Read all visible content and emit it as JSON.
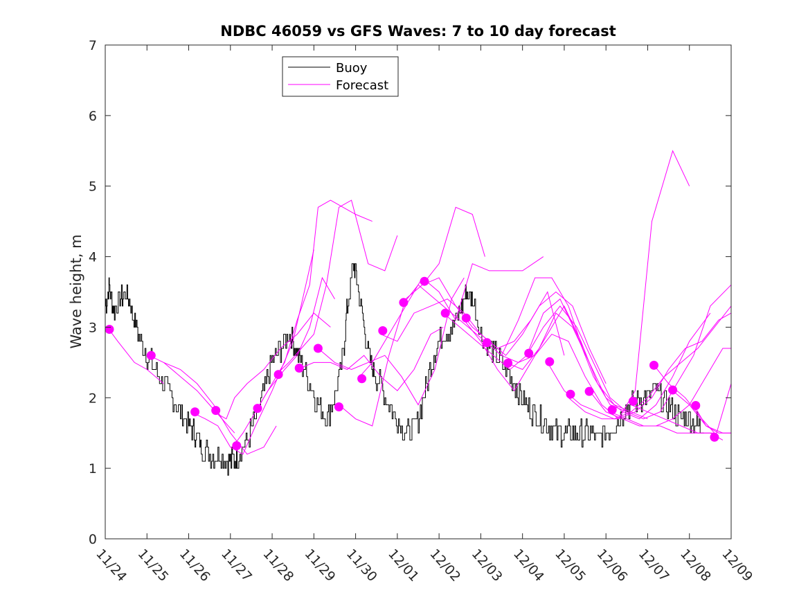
{
  "chart_data": {
    "type": "line",
    "title": "NDBC 46059 vs GFS Waves: 7 to 10 day forecast",
    "xlabel": "",
    "ylabel": "Wave height, m",
    "xlim": [
      0,
      15
    ],
    "ylim": [
      0,
      7
    ],
    "yticks": [
      0,
      1,
      2,
      3,
      4,
      5,
      6,
      7
    ],
    "xticks": [
      0,
      1,
      2,
      3,
      4,
      5,
      6,
      7,
      8,
      9,
      10,
      11,
      12,
      13,
      14,
      15
    ],
    "xtick_labels": [
      "11/24",
      "11/25",
      "11/26",
      "11/27",
      "11/28",
      "11/29",
      "11/30",
      "12/01",
      "12/02",
      "12/03",
      "12/04",
      "12/05",
      "12/06",
      "12/07",
      "12/08",
      "12/09"
    ],
    "legend": {
      "position": "top-left",
      "entries": [
        {
          "label": "Buoy",
          "color": "#000000"
        },
        {
          "label": "Forecast",
          "color": "#ff00ff"
        }
      ]
    },
    "colors": {
      "buoy": "#000000",
      "forecast": "#ff00ff",
      "marker": "#ff00ff"
    },
    "buoy": {
      "name": "Buoy",
      "x": [
        0,
        0.1,
        0.2,
        0.35,
        0.5,
        0.65,
        0.8,
        1.0,
        1.2,
        1.4,
        1.6,
        1.8,
        2.0,
        2.15,
        2.3,
        2.5,
        2.7,
        2.9,
        3.05,
        3.2,
        3.4,
        3.6,
        3.8,
        4.0,
        4.2,
        4.4,
        4.55,
        4.7,
        4.9,
        5.1,
        5.3,
        5.5,
        5.7,
        5.8,
        5.95,
        6.05,
        6.2,
        6.35,
        6.5,
        6.7,
        6.9,
        7.1,
        7.3,
        7.5,
        7.7,
        7.9,
        8.1,
        8.3,
        8.5,
        8.65,
        8.8,
        9.0,
        9.2,
        9.4,
        9.6,
        9.8,
        10.0,
        10.2,
        10.4,
        10.6,
        10.8,
        11.0,
        11.2,
        11.4,
        11.6,
        11.8,
        12.0,
        12.2,
        12.4,
        12.6,
        12.8,
        13.0,
        13.2,
        13.4,
        13.6,
        13.8,
        14.0,
        14.2,
        14.35
      ],
      "y": [
        3.3,
        3.6,
        3.2,
        3.4,
        3.5,
        3.2,
        2.9,
        2.6,
        2.4,
        2.2,
        2.0,
        1.8,
        1.6,
        1.5,
        1.3,
        1.2,
        1.2,
        1.1,
        1.1,
        1.2,
        1.4,
        1.7,
        2.1,
        2.5,
        2.7,
        2.9,
        2.7,
        2.5,
        2.2,
        1.9,
        1.7,
        2.0,
        2.6,
        3.3,
        3.9,
        3.6,
        3.0,
        2.5,
        2.3,
        2.0,
        1.8,
        1.6,
        1.5,
        1.7,
        2.2,
        2.7,
        2.9,
        3.0,
        3.2,
        3.5,
        3.4,
        2.9,
        2.7,
        2.6,
        2.4,
        2.2,
        2.0,
        1.8,
        1.7,
        1.6,
        1.5,
        1.5,
        1.5,
        1.5,
        1.5,
        1.4,
        1.5,
        1.6,
        1.8,
        1.9,
        2.0,
        2.0,
        2.1,
        1.9,
        1.8,
        1.7,
        1.7,
        1.6,
        1.6
      ]
    },
    "forecast_series": [
      {
        "x": [
          0.05,
          0.3,
          0.7,
          1.0,
          1.4
        ],
        "y": [
          3.0,
          2.8,
          2.5,
          2.4,
          2.2
        ]
      },
      {
        "x": [
          1.05,
          1.4,
          1.8,
          2.2,
          2.5,
          2.8,
          3.1
        ],
        "y": [
          2.6,
          2.5,
          2.3,
          2.1,
          1.9,
          1.7,
          1.5
        ]
      },
      {
        "x": [
          1.4,
          1.8,
          2.2,
          2.6,
          3.0,
          3.4,
          3.8,
          4.1
        ],
        "y": [
          2.5,
          2.4,
          2.2,
          1.9,
          1.5,
          1.2,
          1.3,
          1.6
        ]
      },
      {
        "x": [
          2.05,
          2.4,
          2.7,
          3.0,
          3.3,
          3.6,
          4.0,
          4.5,
          5.0
        ],
        "y": [
          1.8,
          1.7,
          1.6,
          1.3,
          1.2,
          1.6,
          2.1,
          2.8,
          4.1
        ]
      },
      {
        "x": [
          2.6,
          2.9,
          3.1,
          3.4,
          3.8,
          4.2,
          4.6,
          5.0,
          5.4
        ],
        "y": [
          1.8,
          1.7,
          2.0,
          2.2,
          2.4,
          2.7,
          2.9,
          3.2,
          3.0
        ]
      },
      {
        "x": [
          3.05,
          3.3,
          3.6,
          3.9,
          4.3,
          4.6,
          4.9,
          5.2,
          5.5
        ],
        "y": [
          1.3,
          1.5,
          1.8,
          2.1,
          2.4,
          2.6,
          3.0,
          3.7,
          3.4
        ]
      },
      {
        "x": [
          3.6,
          3.9,
          4.3,
          4.6,
          4.9,
          5.1,
          5.4,
          5.7,
          6.0,
          6.4
        ],
        "y": [
          1.8,
          2.1,
          2.5,
          3.1,
          3.6,
          4.7,
          4.8,
          4.7,
          4.6,
          4.5
        ]
      },
      {
        "x": [
          4.05,
          4.4,
          4.7,
          5.0,
          5.3,
          5.6,
          5.9,
          6.3,
          6.7,
          7.0
        ],
        "y": [
          2.3,
          2.5,
          2.7,
          2.9,
          3.6,
          4.7,
          4.8,
          3.9,
          3.8,
          4.3
        ]
      },
      {
        "x": [
          4.6,
          5.0,
          5.4,
          5.8,
          6.2,
          6.6,
          7.0,
          7.4,
          7.8,
          8.1
        ],
        "y": [
          2.4,
          2.5,
          2.5,
          2.4,
          2.6,
          2.3,
          2.1,
          2.4,
          2.9,
          3.0
        ]
      },
      {
        "x": [
          5.1,
          5.5,
          5.9,
          6.3,
          6.7,
          7.1,
          7.5,
          7.9,
          8.3,
          8.6
        ],
        "y": [
          2.7,
          2.5,
          2.4,
          2.5,
          2.6,
          2.3,
          1.9,
          2.4,
          3.4,
          3.7
        ]
      },
      {
        "x": [
          5.6,
          6.0,
          6.4,
          6.8,
          7.2,
          7.6,
          8.0,
          8.4,
          8.8,
          9.1
        ],
        "y": [
          1.9,
          1.7,
          1.6,
          2.6,
          3.4,
          3.6,
          3.9,
          4.7,
          4.6,
          4.0
        ]
      },
      {
        "x": [
          6.1,
          6.4,
          6.8,
          7.2,
          7.6,
          8.0,
          8.4,
          8.8,
          9.2,
          9.6,
          10.0,
          10.5
        ],
        "y": [
          2.3,
          2.5,
          2.9,
          3.3,
          3.7,
          3.5,
          3.1,
          3.9,
          3.8,
          3.8,
          3.8,
          4.0
        ]
      },
      {
        "x": [
          6.6,
          7.0,
          7.4,
          7.8,
          8.2,
          8.6,
          9.0,
          9.4,
          9.8,
          10.2,
          10.6,
          11.0
        ],
        "y": [
          2.9,
          2.8,
          3.2,
          3.3,
          3.4,
          3.2,
          2.9,
          2.7,
          2.8,
          3.1,
          3.5,
          2.6
        ]
      },
      {
        "x": [
          7.1,
          7.5,
          7.9,
          8.3,
          8.7,
          9.1,
          9.5,
          9.9,
          10.3,
          10.7,
          11.1,
          11.5
        ],
        "y": [
          3.3,
          3.6,
          3.4,
          3.2,
          3.0,
          2.8,
          2.6,
          3.1,
          3.7,
          3.7,
          3.3,
          2.6
        ]
      },
      {
        "x": [
          7.6,
          8.0,
          8.4,
          8.8,
          9.2,
          9.6,
          10.0,
          10.4,
          10.8,
          11.2,
          11.6,
          12.0
        ],
        "y": [
          3.6,
          3.7,
          3.3,
          3.0,
          2.8,
          2.6,
          2.9,
          3.3,
          3.5,
          3.3,
          2.7,
          2.2
        ]
      },
      {
        "x": [
          8.1,
          8.5,
          8.9,
          9.3,
          9.7,
          10.1,
          10.5,
          10.9,
          11.3,
          11.7,
          12.1,
          12.5
        ],
        "y": [
          3.2,
          3.0,
          2.8,
          2.6,
          2.4,
          2.6,
          3.2,
          3.4,
          2.9,
          2.3,
          1.9,
          1.8
        ]
      },
      {
        "x": [
          8.6,
          9.0,
          9.4,
          9.8,
          10.2,
          10.6,
          11.0,
          11.4,
          11.8,
          12.2,
          12.6,
          13.0
        ],
        "y": [
          3.1,
          2.8,
          2.4,
          2.1,
          2.5,
          2.9,
          3.3,
          2.8,
          2.2,
          1.9,
          1.8,
          1.7
        ]
      },
      {
        "x": [
          9.1,
          9.5,
          9.9,
          10.3,
          10.7,
          11.1,
          11.5,
          11.9,
          12.3,
          12.7,
          13.1,
          13.6,
          14.0
        ],
        "y": [
          2.8,
          2.6,
          2.5,
          2.6,
          2.9,
          2.8,
          2.3,
          1.9,
          1.7,
          2.1,
          4.5,
          5.5,
          5.0
        ]
      },
      {
        "x": [
          9.6,
          10.0,
          10.4,
          10.8,
          11.2,
          11.6,
          12.0,
          12.4,
          12.8,
          13.2,
          13.6,
          14.0,
          14.5
        ],
        "y": [
          2.5,
          2.4,
          2.7,
          3.2,
          3.0,
          2.5,
          2.0,
          1.8,
          1.7,
          1.9,
          2.3,
          2.8,
          3.2
        ]
      },
      {
        "x": [
          10.1,
          10.5,
          10.9,
          11.3,
          11.7,
          12.1,
          12.5,
          12.9,
          13.3,
          13.7,
          14.1,
          14.5,
          15.0
        ],
        "y": [
          2.6,
          3.0,
          3.3,
          3.0,
          2.5,
          2.0,
          1.8,
          1.7,
          1.8,
          2.2,
          2.6,
          3.3,
          3.6
        ]
      },
      {
        "x": [
          10.6,
          11.0,
          11.4,
          11.8,
          12.2,
          12.6,
          13.0,
          13.4,
          13.8,
          14.2,
          14.6,
          15.0
        ],
        "y": [
          2.5,
          2.1,
          1.9,
          1.8,
          1.7,
          1.8,
          2.0,
          2.3,
          2.5,
          2.7,
          3.0,
          3.3
        ]
      },
      {
        "x": [
          11.1,
          11.5,
          11.9,
          12.3,
          12.7,
          13.1,
          13.5,
          13.9,
          14.3,
          14.7,
          15.0
        ],
        "y": [
          2.0,
          1.8,
          1.7,
          1.7,
          1.8,
          2.0,
          2.4,
          2.7,
          2.8,
          3.1,
          3.2
        ]
      },
      {
        "x": [
          11.6,
          12.0,
          12.4,
          12.8,
          13.2,
          13.6,
          14.0,
          14.4,
          14.8,
          15.0
        ],
        "y": [
          2.1,
          1.8,
          1.7,
          1.6,
          1.6,
          1.7,
          1.9,
          2.3,
          2.7,
          2.7
        ]
      },
      {
        "x": [
          12.1,
          12.5,
          12.9,
          13.3,
          13.7,
          14.1,
          14.5,
          14.8
        ],
        "y": [
          1.8,
          1.7,
          1.6,
          1.6,
          1.5,
          1.5,
          1.5,
          1.4
        ]
      },
      {
        "x": [
          12.6,
          13.0,
          13.4,
          13.8,
          14.2,
          14.6
        ],
        "y": [
          1.9,
          1.8,
          1.7,
          1.6,
          1.5,
          1.5
        ]
      },
      {
        "x": [
          13.1,
          13.5,
          13.9,
          14.3,
          14.6
        ],
        "y": [
          2.5,
          2.2,
          2.0,
          1.7,
          1.5
        ]
      },
      {
        "x": [
          13.6,
          14.0,
          14.4,
          14.8,
          15.0
        ],
        "y": [
          2.1,
          1.9,
          1.6,
          1.5,
          1.5
        ]
      },
      {
        "x": [
          14.1,
          14.4,
          14.7,
          15.0
        ],
        "y": [
          1.9,
          1.6,
          1.5,
          1.5
        ]
      },
      {
        "x": [
          14.6,
          14.8,
          15.0
        ],
        "y": [
          1.4,
          1.8,
          2.2
        ]
      }
    ],
    "forecast_markers": {
      "x": [
        0.1,
        1.1,
        2.15,
        2.65,
        3.15,
        3.65,
        4.15,
        4.65,
        5.1,
        5.6,
        6.15,
        6.65,
        7.15,
        7.65,
        8.15,
        8.65,
        9.15,
        9.65,
        10.15,
        10.65,
        11.15,
        11.6,
        12.15,
        12.65,
        13.15,
        13.6,
        14.15,
        14.6
      ],
      "y": [
        2.97,
        2.6,
        1.8,
        1.82,
        1.32,
        1.85,
        2.33,
        2.42,
        2.7,
        1.87,
        2.27,
        2.95,
        3.35,
        3.65,
        3.2,
        3.13,
        2.78,
        2.49,
        2.63,
        2.51,
        2.05,
        2.09,
        1.83,
        1.95,
        2.46,
        2.11,
        1.89,
        1.44
      ]
    }
  }
}
